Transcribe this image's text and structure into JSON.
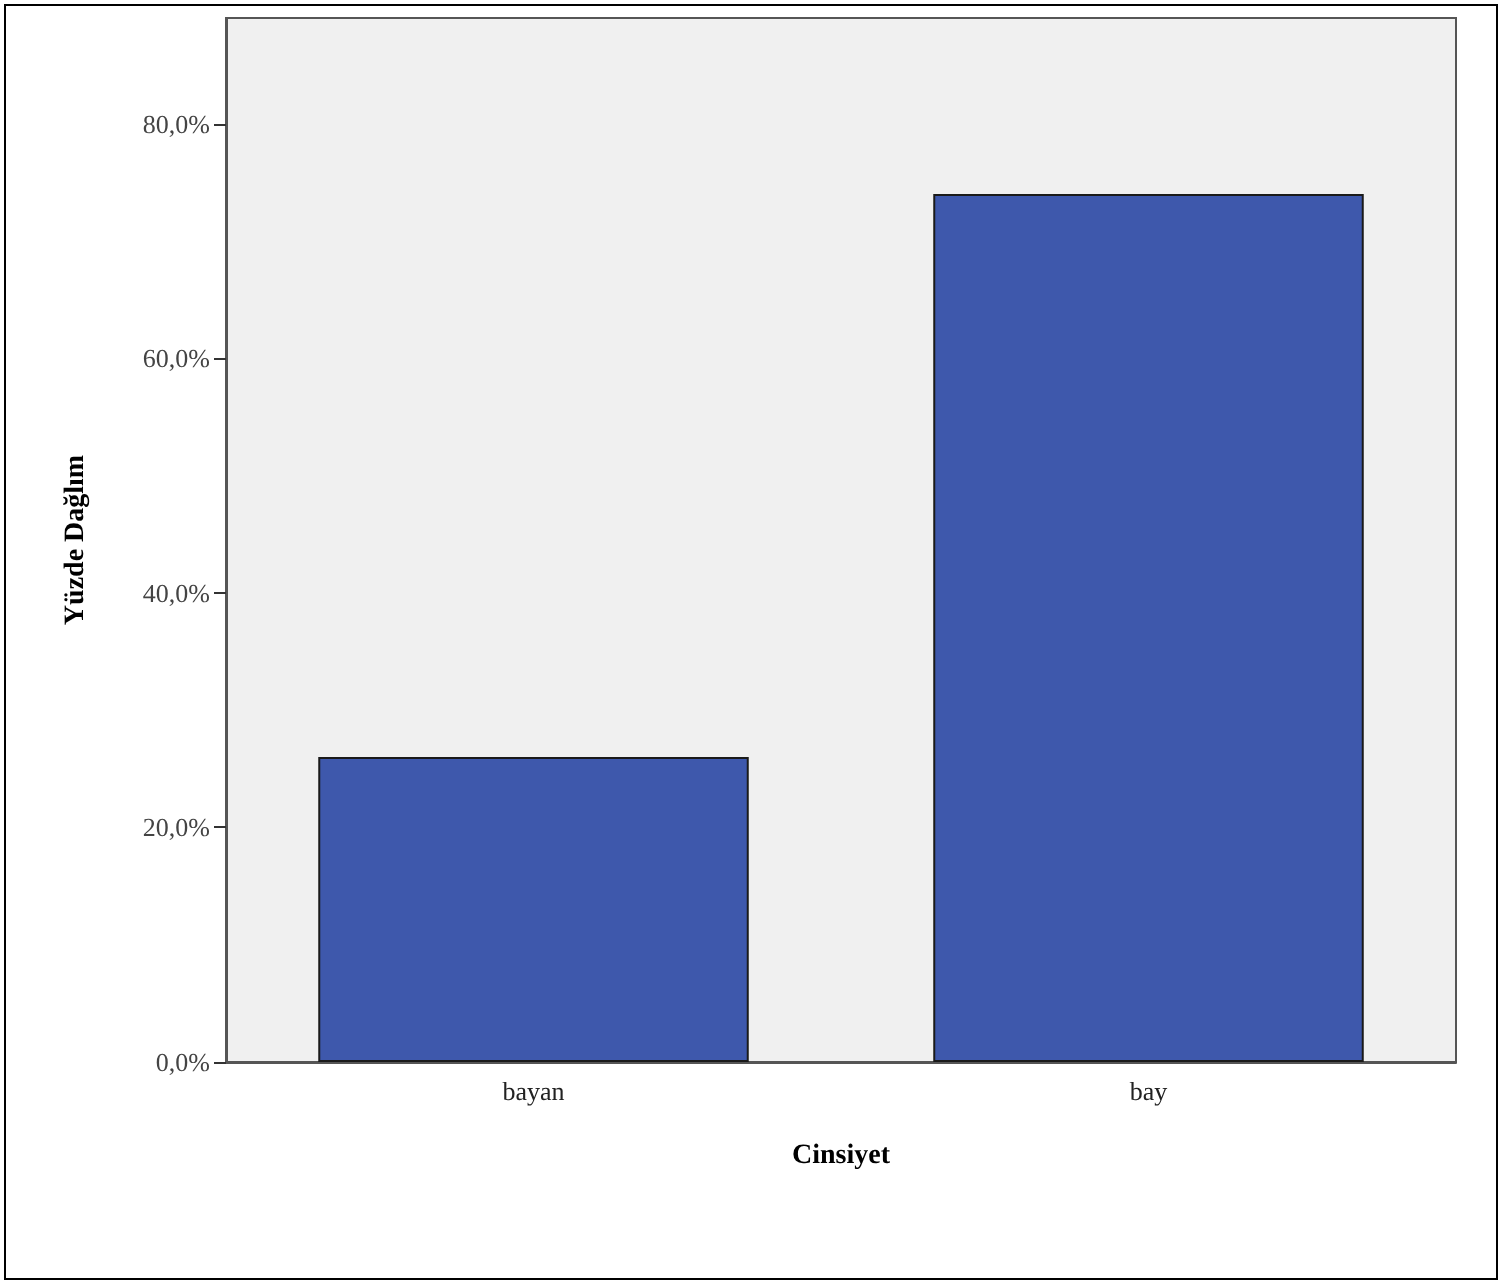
{
  "chart_data": {
    "type": "bar",
    "xlabel": "Cinsiyet",
    "ylabel": "Yüzde Dağlım",
    "categories": [
      "bayan",
      "bay"
    ],
    "values": [
      26,
      74
    ],
    "color": "#3e58ac",
    "ylim": [
      0,
      89
    ],
    "yticks": [
      {
        "value": 0,
        "label": "0,0%"
      },
      {
        "value": 20,
        "label": "20,0%"
      },
      {
        "value": 40,
        "label": "40,0%"
      },
      {
        "value": 60,
        "label": "60,0%"
      },
      {
        "value": 80,
        "label": "80,0%"
      }
    ],
    "grid": false
  }
}
